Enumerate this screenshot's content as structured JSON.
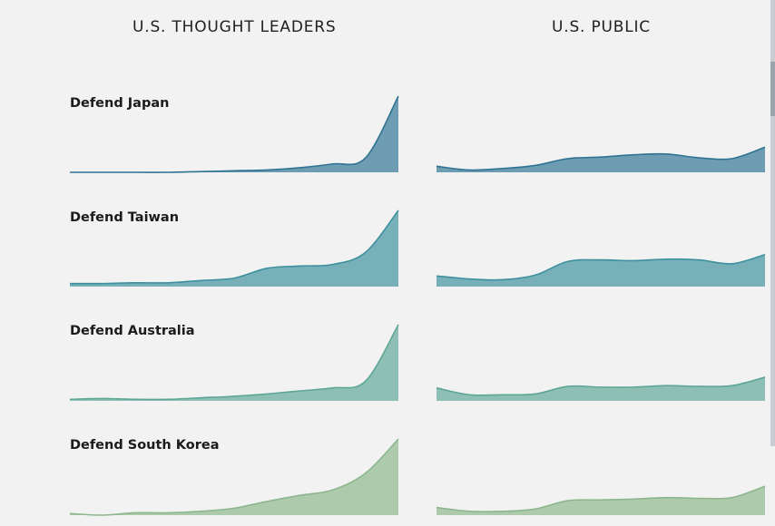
{
  "columns": [
    {
      "title": "U.S. THOUGHT LEADERS"
    },
    {
      "title": "U.S. PUBLIC"
    }
  ],
  "colors": [
    "#2f7393",
    "#3d909e",
    "#5ea696",
    "#8cb78c"
  ],
  "chart_data": {
    "type": "area",
    "x": [
      0,
      1,
      2,
      3,
      4,
      5,
      6,
      7,
      8,
      9,
      10
    ],
    "rows": [
      {
        "label": "Defend Japan",
        "color": "#2f7393",
        "leaders": [
          0.0,
          0.0,
          0.0,
          0.0,
          0.01,
          0.02,
          0.03,
          0.06,
          0.11,
          0.19,
          1.0
        ],
        "public": [
          0.08,
          0.03,
          0.05,
          0.09,
          0.18,
          0.2,
          0.23,
          0.24,
          0.19,
          0.18,
          0.33
        ]
      },
      {
        "label": "Defend Taiwan",
        "color": "#3d909e",
        "leaders": [
          0.04,
          0.04,
          0.05,
          0.05,
          0.08,
          0.11,
          0.24,
          0.27,
          0.29,
          0.45,
          1.0
        ],
        "public": [
          0.14,
          0.1,
          0.09,
          0.15,
          0.33,
          0.35,
          0.34,
          0.36,
          0.35,
          0.3,
          0.42
        ]
      },
      {
        "label": "Defend Australia",
        "color": "#5ea696",
        "leaders": [
          0.02,
          0.03,
          0.02,
          0.02,
          0.04,
          0.06,
          0.09,
          0.13,
          0.17,
          0.26,
          1.0
        ],
        "public": [
          0.17,
          0.08,
          0.08,
          0.09,
          0.19,
          0.18,
          0.18,
          0.2,
          0.19,
          0.2,
          0.31
        ]
      },
      {
        "label": "Defend South Korea",
        "color": "#8cb78c",
        "leaders": [
          0.02,
          0.0,
          0.03,
          0.03,
          0.05,
          0.09,
          0.18,
          0.26,
          0.33,
          0.55,
          1.0
        ],
        "public": [
          0.1,
          0.05,
          0.05,
          0.08,
          0.19,
          0.2,
          0.21,
          0.23,
          0.22,
          0.23,
          0.38
        ]
      }
    ],
    "ylim": [
      0,
      1
    ],
    "grid": false,
    "legend": "none"
  }
}
